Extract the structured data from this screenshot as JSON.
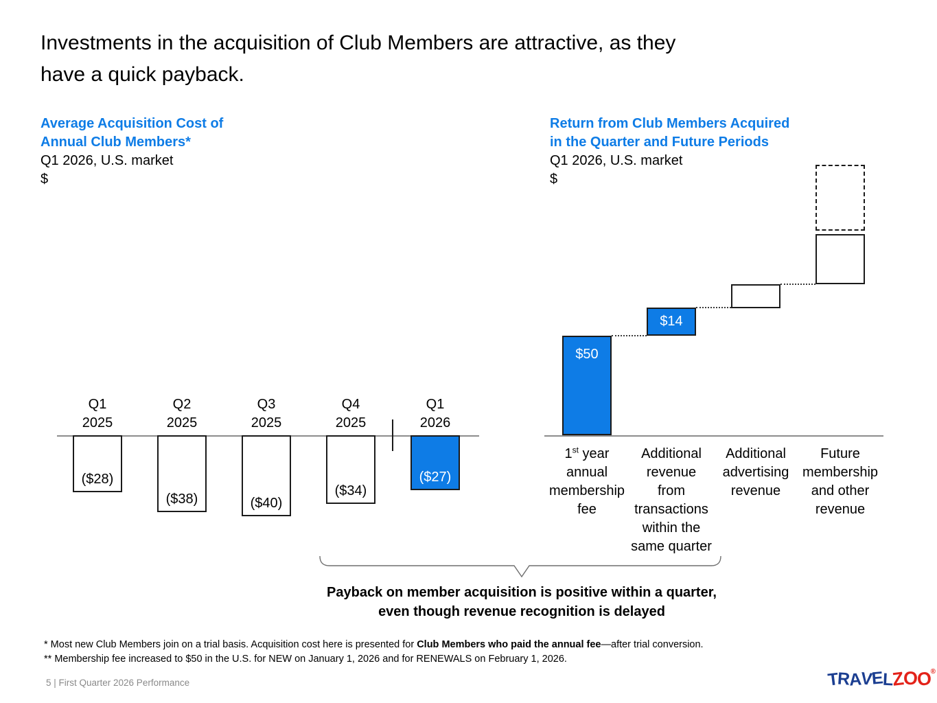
{
  "slide": {
    "title_line1": "Investments in the acquisition of Club Members are attractive, as they",
    "title_line2": "have a quick payback.",
    "callout_line1": "Payback on member acquisition is positive within a quarter,",
    "callout_line2": "even though revenue recognition is delayed",
    "footnote1_pre": "* Most new Club Members join on a trial basis. Acquisition cost here is presented for ",
    "footnote1_bold": "Club Members who paid the annual fee",
    "footnote1_post": "—after trial conversion.",
    "footnote2": "** Membership fee increased to $50 in the U.S. for NEW on January 1, 2026 and for RENEWALS on February 1, 2026.",
    "footer_text": "5 | First Quarter 2026 Performance",
    "logo": {
      "word1": "TRAVEL",
      "word2": "ZOO",
      "registered_mark": "®"
    },
    "accent_blue": "#0e7ce6"
  },
  "chart_data": [
    {
      "type": "bar",
      "title_line1": "Average Acquisition Cost of",
      "title_line2": "Annual Club Members*",
      "subtitle": "Q1 2026, U.S. market",
      "ylabel": "$",
      "categories": [
        [
          "Q1",
          "2025"
        ],
        [
          "Q2",
          "2025"
        ],
        [
          "Q3",
          "2025"
        ],
        [
          "Q4",
          "2025"
        ],
        [
          "Q1",
          "2026"
        ]
      ],
      "values": [
        -28,
        -38,
        -40,
        -34,
        -27
      ],
      "data_labels": [
        "($28)",
        "($38)",
        "($40)",
        "($34)",
        "($27)"
      ],
      "highlighted_index": 4,
      "highlight_color": "#0e7ce6",
      "layout_hint": "bars hang below a zero baseline; a short vertical tick on the baseline separates 2025 bars from the Q1 2026 bar"
    },
    {
      "type": "waterfall",
      "title_line1": "Return from Club Members Acquired",
      "title_line2": "in the Quarter and Future Periods",
      "subtitle": "Q1 2026, U.S. market",
      "ylabel": "$",
      "categories": [
        [
          "1st year",
          "annual",
          "membership",
          "fee"
        ],
        [
          "Additional",
          "revenue",
          "from",
          "transactions",
          "within the",
          "same quarter"
        ],
        [
          "Additional",
          "advertising",
          "revenue"
        ],
        [
          "Future",
          "membership",
          "and other",
          "revenue"
        ]
      ],
      "bars": [
        {
          "label": "$50",
          "start": 0,
          "end": 50,
          "style": "blue",
          "estimated": false
        },
        {
          "label": "$14",
          "start": 50,
          "end": 64,
          "style": "blue",
          "estimated": false
        },
        {
          "label": "",
          "start": 64,
          "end": 76,
          "style": "white",
          "estimated": true
        },
        {
          "label": "",
          "start": 76,
          "end": 101,
          "style": "white",
          "estimated": true
        },
        {
          "label": "",
          "start": 103,
          "end": 136,
          "style": "dashed",
          "estimated": true
        }
      ],
      "layout_hint": "ascending waterfall; first two steps are blue with white value labels, next two are unlabeled white boxes joined by dotted connectors, top box is dashed outline stacked on the fourth column"
    }
  ]
}
